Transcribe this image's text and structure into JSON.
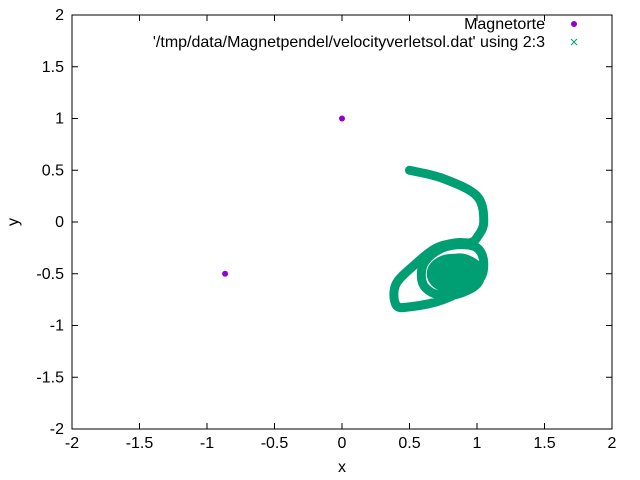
{
  "chart_data": {
    "type": "scatter",
    "title": "",
    "xlabel": "x",
    "ylabel": "y",
    "xlim": [
      -2,
      2
    ],
    "ylim": [
      -2,
      2
    ],
    "xticks": [
      -2,
      -1.5,
      -1,
      -0.5,
      0,
      0.5,
      1,
      1.5,
      2
    ],
    "yticks": [
      -2,
      -1.5,
      -1,
      -0.5,
      0,
      0.5,
      1,
      1.5,
      2
    ],
    "xtick_labels": [
      "-2",
      "-1.5",
      "-1",
      "-0.5",
      "0",
      "0.5",
      "1",
      "1.5",
      "2"
    ],
    "ytick_labels": [
      "-2",
      "-1.5",
      "-1",
      "-0.5",
      "0",
      "0.5",
      "1",
      "1.5",
      "2"
    ],
    "grid": false,
    "legend_position": "top-right",
    "series": [
      {
        "name": "Magnetorte",
        "marker": "filled-circle",
        "color": "#9400d3",
        "x": [
          0,
          -0.866
        ],
        "y": [
          1,
          -0.5
        ]
      },
      {
        "name": "'/tmp/data/Magnetpendel/velocityverletsol.dat' using 2:3",
        "marker": "cross",
        "color": "#009e73",
        "x": [
          0.5,
          0.75,
          1.0,
          1.05,
          1.0,
          0.95,
          0.85,
          0.7,
          0.55,
          0.4,
          0.4,
          0.5,
          0.75,
          1.0,
          1.05,
          1.0,
          0.85,
          0.7,
          0.6,
          0.6,
          0.7,
          0.85,
          1.0,
          1.02,
          0.9,
          0.78,
          0.72,
          0.76,
          0.88,
          0.95,
          0.88,
          0.8,
          0.78,
          0.82
        ],
        "y": [
          0.5,
          0.42,
          0.25,
          0.0,
          -0.15,
          -0.2,
          -0.2,
          -0.25,
          -0.4,
          -0.6,
          -0.8,
          -0.82,
          -0.75,
          -0.58,
          -0.4,
          -0.25,
          -0.22,
          -0.28,
          -0.42,
          -0.6,
          -0.7,
          -0.7,
          -0.6,
          -0.45,
          -0.35,
          -0.38,
          -0.5,
          -0.62,
          -0.6,
          -0.5,
          -0.42,
          -0.45,
          -0.55,
          -0.52
        ]
      }
    ]
  }
}
